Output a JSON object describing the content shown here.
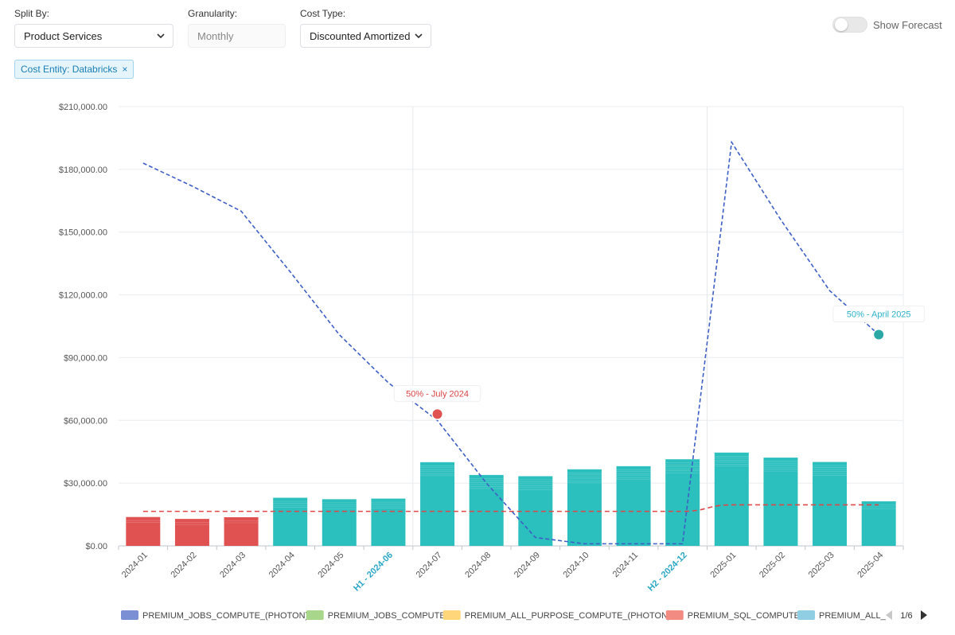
{
  "controls": {
    "split_by": {
      "label": "Split By:",
      "value": "Product Services"
    },
    "granularity": {
      "label": "Granularity:",
      "value": "Monthly"
    },
    "cost_type": {
      "label": "Cost Type:",
      "value": "Discounted Amortized"
    },
    "filter_tag": {
      "text": "Cost Entity: Databricks",
      "remove": "×"
    },
    "forecast_toggle": {
      "label": "Show Forecast",
      "on": false
    }
  },
  "colors": {
    "bar_past": "#e05252",
    "bar_current": "#2bbfbd",
    "line_blue": "#3d5fc4",
    "line_red": "#e04848",
    "marker_red": "#e05252",
    "marker_teal": "#2ba8a6",
    "period_label": "#2aa7c4",
    "annot_red": "#d84444",
    "annot_teal": "#2ab1c8"
  },
  "chart_data": {
    "type": "bar",
    "categories": [
      "2024-01",
      "2024-02",
      "2024-03",
      "2024-04",
      "2024-05",
      "H1 - 2024-06",
      "2024-07",
      "2024-08",
      "2024-09",
      "2024-10",
      "2024-11",
      "H2 - 2024-12",
      "2025-01",
      "2025-02",
      "2025-03",
      "2025-04"
    ],
    "highlight_categories": [
      "H1 - 2024-06",
      "H2 - 2024-12"
    ],
    "series": [
      {
        "type": "bar",
        "values": [
          13800,
          12900,
          13700,
          23000,
          22300,
          22600,
          40000,
          33900,
          33300,
          36600,
          38100,
          41400,
          44600,
          42200,
          40100,
          21300
        ]
      },
      {
        "type": "line",
        "style": "dashed",
        "color": "blue",
        "values": [
          183000,
          172000,
          160000,
          131000,
          101000,
          78000,
          60000,
          30000,
          4000,
          1000,
          1000,
          1000,
          193000,
          156000,
          122000,
          101000
        ]
      },
      {
        "type": "line",
        "style": "dashed",
        "color": "red",
        "values": [
          16500,
          16500,
          16500,
          16500,
          16500,
          16500,
          16500,
          16500,
          16500,
          16500,
          16500,
          16500,
          19600,
          19600,
          19600,
          19600
        ]
      }
    ],
    "ylim": [
      0,
      210000
    ],
    "yticks": [
      "$210,000.00",
      "$180,000.00",
      "$150,000.00",
      "$120,000.00",
      "$90,000.00",
      "$60,000.00",
      "$30,000.00",
      "$0.00"
    ],
    "annotations": [
      {
        "text": "50% - July 2024",
        "category_index": 6,
        "value": 63000,
        "color": "red"
      },
      {
        "text": "50% - April 2025",
        "category_index": 15,
        "value": 101000,
        "color": "teal"
      }
    ],
    "grid": true,
    "legend": {
      "placement": "bottom",
      "items": [
        {
          "name": "PREMIUM_JOBS_COMPUTE_(PHOTON)",
          "color": "#7b90d4"
        },
        {
          "name": "PREMIUM_JOBS_COMPUTE",
          "color": "#a8d68a"
        },
        {
          "name": "PREMIUM_ALL_PURPOSE_COMPUTE_(PHOTON)",
          "color": "#ffd77a"
        },
        {
          "name": "PREMIUM_SQL_COMPUTE",
          "color": "#f28b82"
        },
        {
          "name": "PREMIUM_ALL_",
          "color": "#90cfe3"
        }
      ],
      "page": "1/6"
    }
  }
}
